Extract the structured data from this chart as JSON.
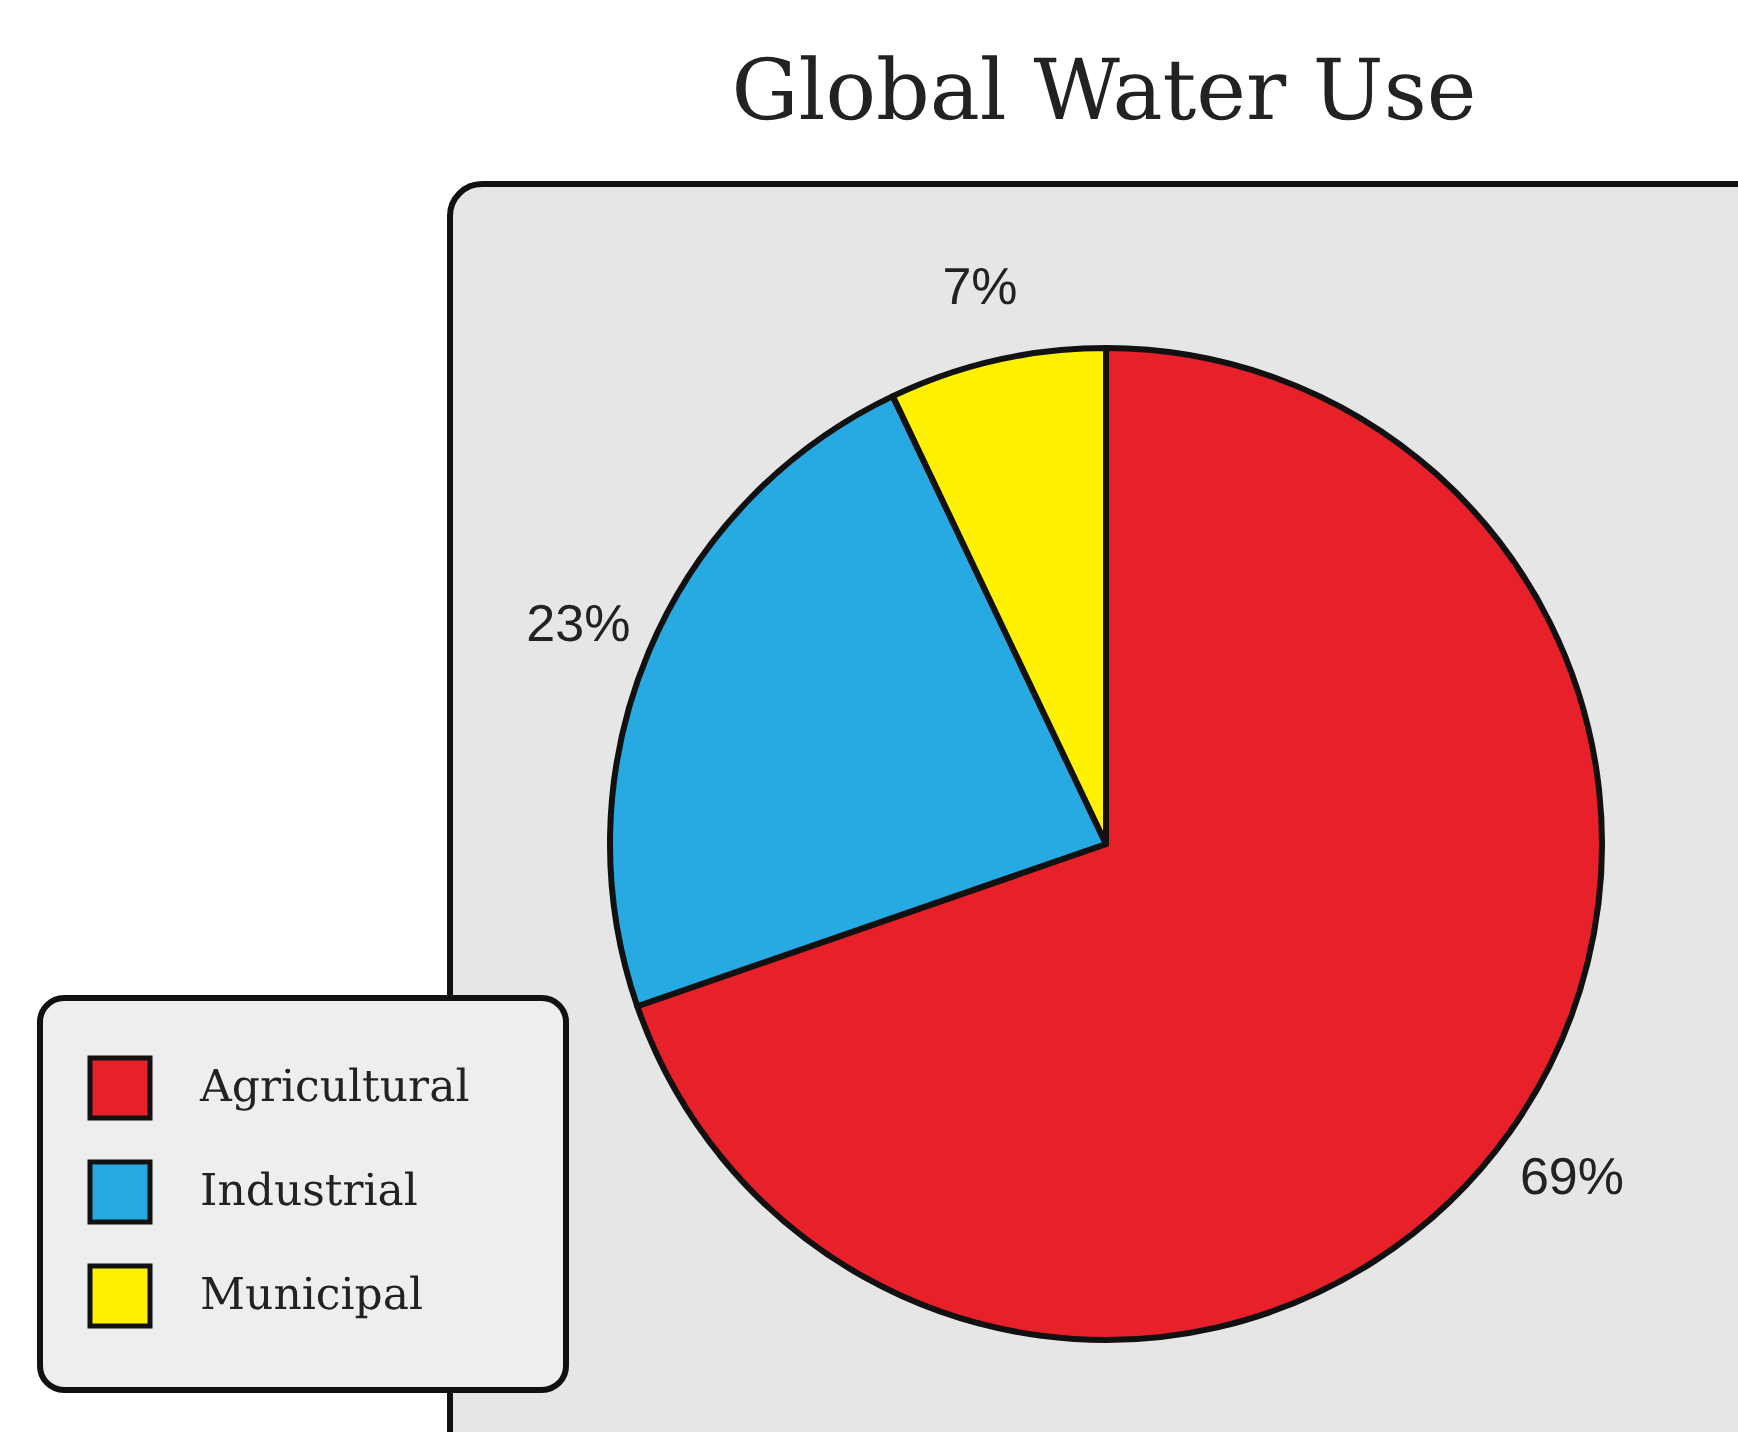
{
  "chart_data": {
    "type": "pie",
    "title": "Global Water Use",
    "categories": [
      "Agricultural",
      "Industrial",
      "Municipal"
    ],
    "values": [
      69,
      23,
      7
    ],
    "value_labels": [
      "69%",
      "23%",
      "7%"
    ],
    "colors": [
      "#e8202a",
      "#27aae1",
      "#fff200"
    ],
    "legend": "bottom left"
  }
}
